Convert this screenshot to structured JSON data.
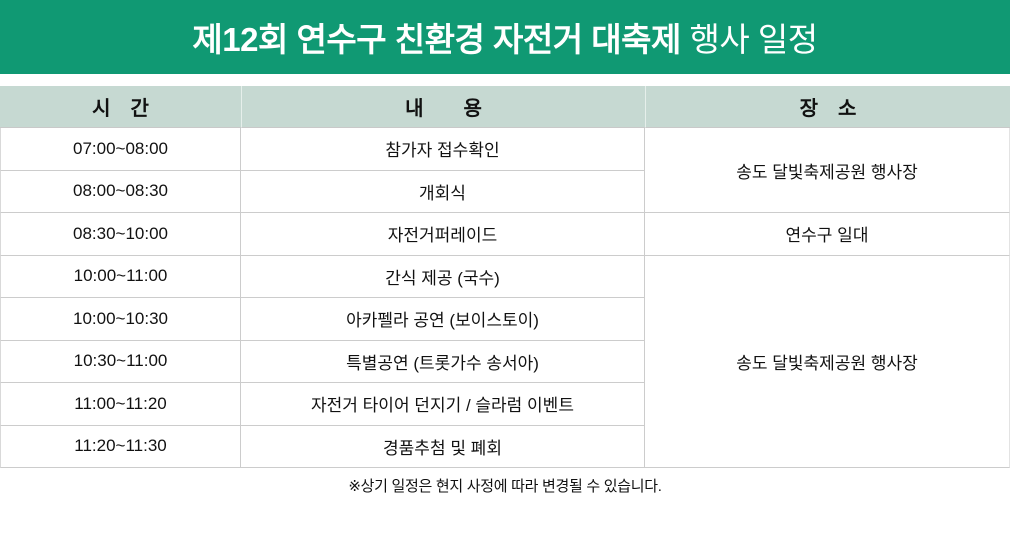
{
  "banner": {
    "bg_color": "#109973",
    "text_color": "#ffffff",
    "title_bold": "제12회 연수구 친환경 자전거 대축제",
    "title_suffix": " 행사 일정"
  },
  "table": {
    "header_bg": "#c6d9d2",
    "grid_color": "#cccccc",
    "columns": [
      {
        "label": "시　간"
      },
      {
        "label": "내　　용"
      },
      {
        "label": "장　소"
      }
    ],
    "rows": [
      {
        "time": "07:00~08:00",
        "content": "참가자 접수확인"
      },
      {
        "time": "08:00~08:30",
        "content": "개회식"
      },
      {
        "time": "08:30~10:00",
        "content": "자전거퍼레이드"
      },
      {
        "time": "10:00~11:00",
        "content": "간식 제공 (국수)"
      },
      {
        "time": "10:00~10:30",
        "content": "아카펠라 공연 (보이스토이)"
      },
      {
        "time": "10:30~11:00",
        "content": "특별공연 (트롯가수 송서아)"
      },
      {
        "time": "11:00~11:20",
        "content": "자전거 타이어 던지기 / 슬라럼 이벤트"
      },
      {
        "time": "11:20~11:30",
        "content": "경품추첨 및 폐회"
      }
    ],
    "locations": [
      {
        "label": "송도 달빛축제공원 행사장",
        "rowspan": 2
      },
      {
        "label": "연수구 일대",
        "rowspan": 1
      },
      {
        "label": "송도 달빛축제공원 행사장",
        "rowspan": 5
      }
    ]
  },
  "footer": {
    "note": "※상기 일정은 현지 사정에 따라 변경될 수 있습니다."
  }
}
